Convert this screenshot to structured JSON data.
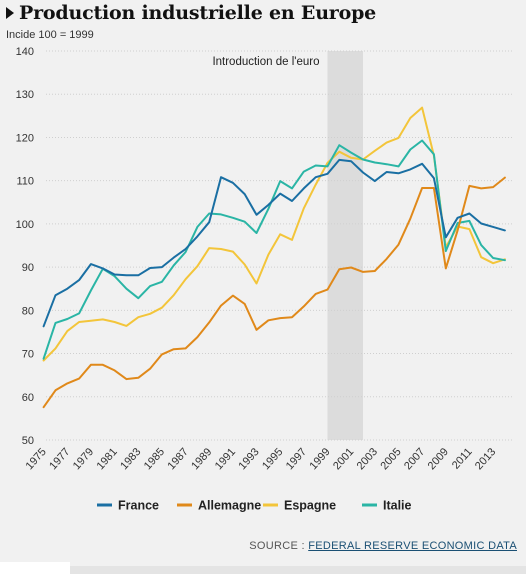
{
  "header": {
    "title": "Production industrielle en Europe",
    "subtitle": "Incide 100 = 1999"
  },
  "annotation": {
    "label": "Introduction de l'euro",
    "from": 1999,
    "to": 2002
  },
  "source": {
    "prefix": "SOURCE : ",
    "link": "FEDERAL RESERVE ECONOMIC DATA"
  },
  "colors": {
    "France": "#1a6fa3",
    "Allemagne": "#e0891a",
    "Espagne": "#f3c53a",
    "Italie": "#2ab5a5",
    "band": "#dcdcdc",
    "grid": "#cfcfcf"
  },
  "chart_data": {
    "type": "line",
    "title": "Production industrielle en Europe",
    "subtitle": "Incide 100 = 1999",
    "xlabel": "",
    "ylabel": "",
    "xlim": [
      1975,
      2014
    ],
    "ylim": [
      50,
      140
    ],
    "yticks": [
      50,
      60,
      70,
      80,
      90,
      100,
      110,
      120,
      130,
      140
    ],
    "xticks": [
      "1975",
      "1977",
      "1979",
      "1981",
      "1983",
      "1985",
      "1987",
      "1989",
      "1991",
      "1993",
      "1995",
      "1997",
      "1999",
      "2001",
      "2003",
      "2005",
      "2007",
      "2009",
      "2011",
      "2013"
    ],
    "grid": true,
    "legend": "bottom",
    "x": [
      1975,
      1976,
      1977,
      1978,
      1979,
      1980,
      1981,
      1982,
      1983,
      1984,
      1985,
      1986,
      1987,
      1988,
      1989,
      1990,
      1991,
      1992,
      1993,
      1994,
      1995,
      1996,
      1997,
      1998,
      1999,
      2000,
      2001,
      2002,
      2003,
      2004,
      2005,
      2006,
      2007,
      2008,
      2009,
      2010,
      2011,
      2012,
      2013,
      2014
    ],
    "series": [
      {
        "name": "France",
        "values": [
          76.3,
          83.5,
          85,
          87,
          90.7,
          89.7,
          88.3,
          88.1,
          88.1,
          89.8,
          90,
          92.2,
          94.2,
          97.1,
          100.4,
          110.8,
          109.5,
          106.9,
          102.1,
          104.4,
          107,
          105.3,
          108.2,
          110.8,
          111.6,
          114.8,
          114.5,
          111.9,
          109.9,
          112,
          111.7,
          112.6,
          113.9,
          110.6,
          96.9,
          101.4,
          102.4,
          100.1,
          99.3,
          98.5
        ]
      },
      {
        "name": "Allemagne",
        "values": [
          57.6,
          61.5,
          63.1,
          64.2,
          67.4,
          67.4,
          66.1,
          64.1,
          64.4,
          66.5,
          69.8,
          71,
          71.2,
          73.8,
          77.2,
          81.1,
          83.4,
          81.5,
          75.5,
          77.7,
          78.2,
          78.4,
          80.9,
          83.8,
          84.8,
          89.5,
          89.9,
          88.9,
          89.1,
          91.9,
          95.2,
          101.2,
          108.3,
          108.3,
          89.7,
          98.5,
          108.8,
          108.2,
          108.5,
          110.7
        ]
      },
      {
        "name": "Espagne",
        "values": [
          68.4,
          71.2,
          75.2,
          77.3,
          77.6,
          77.9,
          77.3,
          76.4,
          78.4,
          79.2,
          80.6,
          83.5,
          87.2,
          90.2,
          94.4,
          94.2,
          93.6,
          90.6,
          86.2,
          92.9,
          97.6,
          96.3,
          103.6,
          109.1,
          114.1,
          116.7,
          115.3,
          114.9,
          116.9,
          118.8,
          119.9,
          124.5,
          126.9,
          115.8,
          94.6,
          99.4,
          98.8,
          92.3,
          90.9,
          91.8
        ]
      },
      {
        "name": "Italie",
        "values": [
          68.8,
          77.1,
          78,
          79.3,
          84.6,
          89.6,
          87.9,
          85,
          82.8,
          85.6,
          86.6,
          90.4,
          93.5,
          99.3,
          102.4,
          102.2,
          101.4,
          100.5,
          97.9,
          103.5,
          109.9,
          108.2,
          112.1,
          113.5,
          113.3,
          118.2,
          116.5,
          114.9,
          114.2,
          113.8,
          113.3,
          117.2,
          119.3,
          116.1,
          93.7,
          100.2,
          100.7,
          95.1,
          92.1,
          91.6
        ]
      }
    ]
  }
}
